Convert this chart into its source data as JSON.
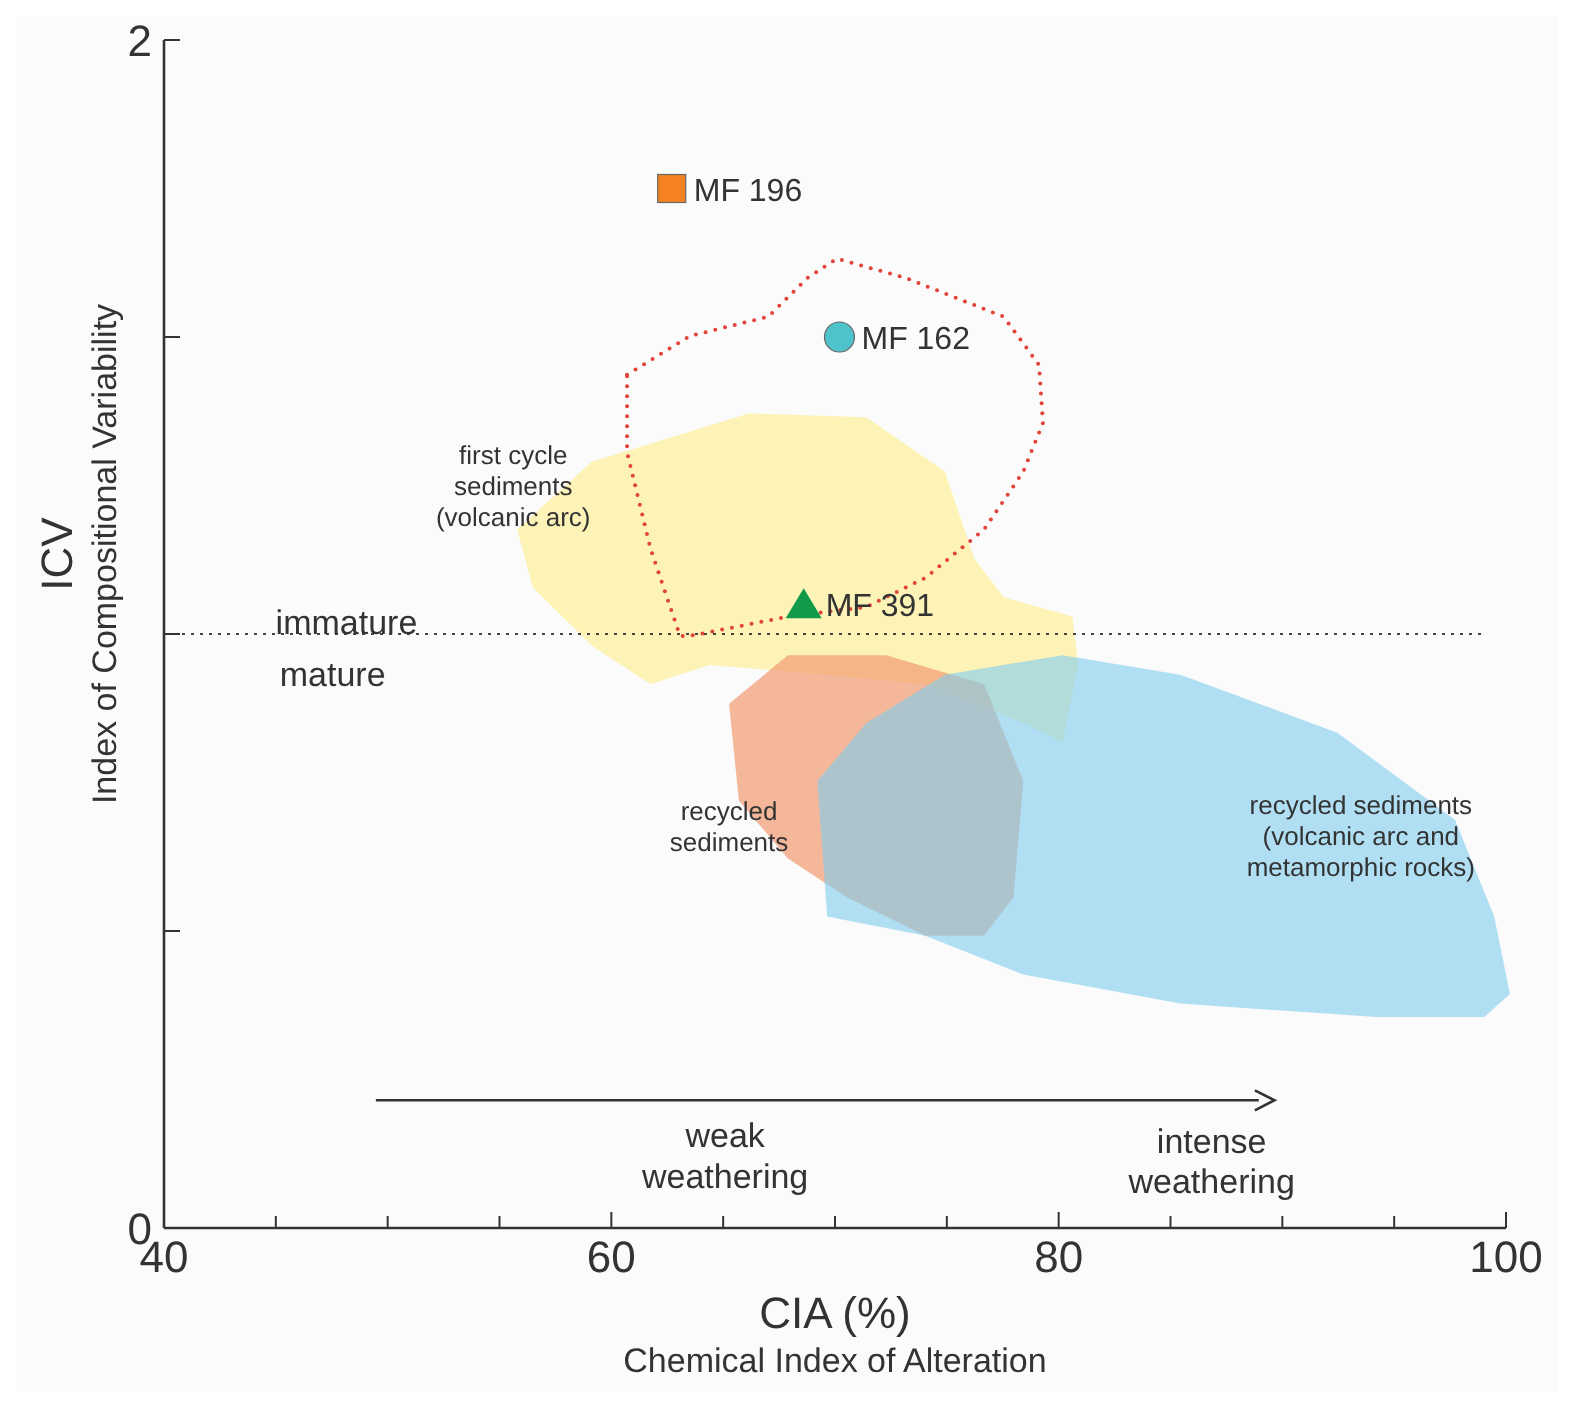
{
  "chart_data": {
    "type": "scatter",
    "xlabel": "CIA (%)\nChemical Index of Alteration",
    "ylabel": "ICV\nIndex of Compositional Variability",
    "xlim": [
      40,
      100
    ],
    "xticks": [
      40,
      {
        "value": 45,
        "label": null
      },
      {
        "value": 50,
        "label": null
      },
      {
        "value": 55,
        "label": null
      },
      60,
      {
        "value": 65,
        "label": null
      },
      {
        "value": 70,
        "label": null
      },
      {
        "value": 75,
        "label": null
      },
      80,
      {
        "value": 85,
        "label": null
      },
      {
        "value": 90,
        "label": null
      },
      {
        "value": 95,
        "label": null
      },
      100
    ],
    "ylim": [
      0,
      2
    ],
    "yticks": [
      0,
      {
        "value": 0.5,
        "label": null
      },
      {
        "value": 1,
        "label": null
      },
      {
        "value": 1.5,
        "label": null
      },
      2
    ],
    "grid": false,
    "ref_lines": [
      {
        "axis": "y",
        "value": 1,
        "color": "#444444",
        "line_style": "dotted"
      }
    ],
    "series": [
      {
        "name": "MF 196",
        "color": "#f58220",
        "marker": "square",
        "x": [
          62.7
        ],
        "values": [
          1.75
        ]
      },
      {
        "name": "MF 162",
        "color": "#4fc3cc",
        "marker": "circle",
        "x": [
          70.2
        ],
        "values": [
          1.5
        ]
      },
      {
        "name": "MF 391",
        "color": "#119a48",
        "marker": "triangle",
        "x": [
          68.6
        ],
        "values": [
          1.05
        ]
      }
    ],
    "annotations": [
      "first cycle\nsediments\n(volcanic arc)",
      "recycled\nsediments",
      "recycled sediments\n(volcanic arc and\nmetamorphic rocks)",
      "immature",
      "mature",
      "weak\nweathering",
      "intense\nweathering"
    ]
  }
}
